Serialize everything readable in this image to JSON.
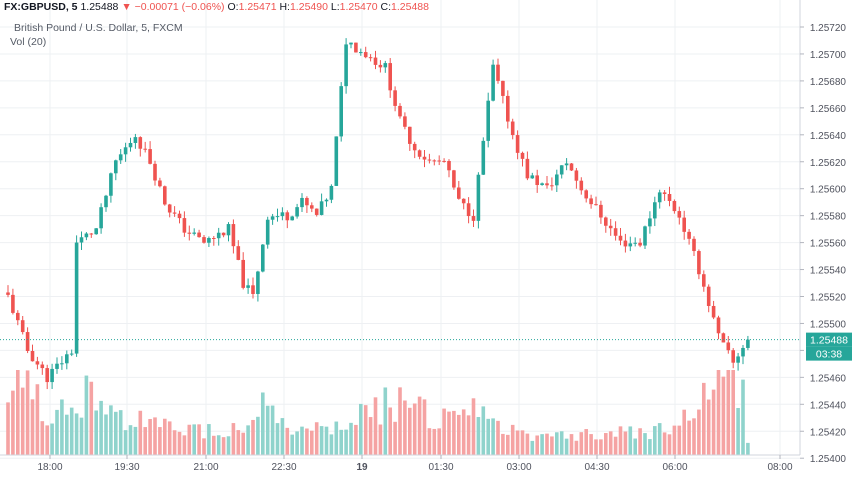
{
  "header": {
    "symbol": "FX:GBPUSD, 5",
    "last": "1.25488",
    "arrow": "▼",
    "change": "−0.00071 (−0.06%)",
    "o_label": "O:",
    "o_value": "1.25471",
    "h_label": "H:",
    "h_value": "1.25490",
    "l_label": "L:",
    "l_value": "1.25470",
    "c_label": "C:",
    "c_value": "1.25488"
  },
  "subtitle": "British Pound / U.S. Dollar, 5, FXCM",
  "volume_label": "Vol (20)",
  "price_tag": "1.25488",
  "countdown_tag": "03:38",
  "colors": {
    "up": "#26a69a",
    "down": "#ef5350",
    "vol_up": "#8fd3cc",
    "vol_down": "#f5a3a3",
    "grid": "#eef0f3",
    "axis_text": "#50535e",
    "price_line": "#26a69a"
  },
  "chart_data": {
    "type": "candlestick",
    "y_axis_ticks": [
      "1.25720",
      "1.25700",
      "1.25680",
      "1.25660",
      "1.25640",
      "1.25620",
      "1.25600",
      "1.25580",
      "1.25560",
      "1.25540",
      "1.25520",
      "1.25500",
      "1.25480",
      "1.25460",
      "1.25440",
      "1.25420",
      "1.25400"
    ],
    "x_axis_ticks": [
      "18:00",
      "19:30",
      "21:00",
      "22:30",
      "19",
      "01:30",
      "03:00",
      "04:30",
      "06:00",
      "08:00"
    ],
    "ylim": [
      1.254,
      1.2573
    ],
    "last_price": 1.25488,
    "price_anchors": [
      [
        0,
        1.2552
      ],
      [
        4,
        1.2548
      ],
      [
        8,
        1.2546
      ],
      [
        13,
        1.2548
      ],
      [
        14,
        1.2556
      ],
      [
        18,
        1.2557
      ],
      [
        22,
        1.2562
      ],
      [
        26,
        1.2564
      ],
      [
        29,
        1.2562
      ],
      [
        32,
        1.2559
      ],
      [
        36,
        1.2557
      ],
      [
        40,
        1.2556
      ],
      [
        45,
        1.2557
      ],
      [
        48,
        1.2553
      ],
      [
        50,
        1.2552
      ],
      [
        53,
        1.2558
      ],
      [
        57,
        1.2558
      ],
      [
        60,
        1.2559
      ],
      [
        63,
        1.2558
      ],
      [
        66,
        1.256
      ],
      [
        69,
        1.2571
      ],
      [
        73,
        1.257
      ],
      [
        77,
        1.2569
      ],
      [
        80,
        1.2565
      ],
      [
        83,
        1.2563
      ],
      [
        86,
        1.2562
      ],
      [
        89,
        1.2562
      ],
      [
        92,
        1.2559
      ],
      [
        95,
        1.2558
      ],
      [
        99,
        1.2569
      ],
      [
        103,
        1.2564
      ],
      [
        106,
        1.2561
      ],
      [
        110,
        1.256
      ],
      [
        114,
        1.2562
      ],
      [
        117,
        1.256
      ],
      [
        121,
        1.2558
      ],
      [
        125,
        1.2556
      ],
      [
        129,
        1.2556
      ],
      [
        133,
        1.256
      ],
      [
        137,
        1.2558
      ],
      [
        141,
        1.2554
      ],
      [
        145,
        1.2549
      ],
      [
        148,
        1.2547
      ],
      [
        151,
        1.2549
      ]
    ],
    "volume_profile": [
      [
        0,
        0.55
      ],
      [
        6,
        0.45
      ],
      [
        9,
        0.25
      ],
      [
        12,
        0.35
      ],
      [
        16,
        0.45
      ],
      [
        20,
        0.3
      ],
      [
        26,
        0.25
      ],
      [
        30,
        0.2
      ],
      [
        40,
        0.18
      ],
      [
        48,
        0.2
      ],
      [
        52,
        0.4
      ],
      [
        55,
        0.25
      ],
      [
        60,
        0.15
      ],
      [
        65,
        0.18
      ],
      [
        70,
        0.22
      ],
      [
        75,
        0.35
      ],
      [
        80,
        0.4
      ],
      [
        85,
        0.3
      ],
      [
        90,
        0.25
      ],
      [
        95,
        0.3
      ],
      [
        100,
        0.2
      ],
      [
        110,
        0.15
      ],
      [
        120,
        0.15
      ],
      [
        130,
        0.17
      ],
      [
        137,
        0.22
      ],
      [
        142,
        0.4
      ],
      [
        146,
        0.6
      ],
      [
        150,
        0.45
      ],
      [
        151,
        0.12
      ]
    ]
  }
}
